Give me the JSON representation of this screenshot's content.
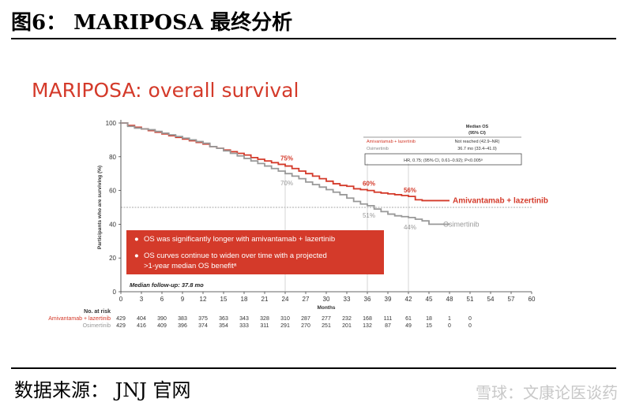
{
  "header": {
    "figure_title": "图6： MARIPOSA 最终分析"
  },
  "footer": {
    "source": "数据来源： JNJ 官网",
    "watermark": "雪球：文康论医谈药"
  },
  "chart_data": {
    "type": "line",
    "title": "MARIPOSA: overall survival",
    "xlabel": "Months",
    "ylabel": "Participants who are surviving (%)",
    "xlim": [
      0,
      60
    ],
    "ylim": [
      0,
      100
    ],
    "x_ticks": [
      0,
      3,
      6,
      9,
      12,
      15,
      18,
      21,
      24,
      27,
      30,
      33,
      36,
      39,
      42,
      45,
      48,
      51,
      54,
      57,
      60
    ],
    "y_ticks": [
      0,
      20,
      40,
      60,
      80,
      100
    ],
    "reference_line_y": 50,
    "series": [
      {
        "name": "Amivantamab + lazertinib",
        "color": "#d43a2a",
        "x": [
          0,
          1,
          2,
          3,
          4,
          5,
          6,
          7,
          8,
          9,
          10,
          11,
          12,
          13,
          14,
          15,
          16,
          17,
          18,
          19,
          20,
          21,
          22,
          23,
          24,
          25,
          26,
          27,
          28,
          29,
          30,
          31,
          32,
          33,
          34,
          35,
          36,
          37,
          38,
          39,
          40,
          41,
          42,
          43,
          44,
          45,
          46,
          47,
          48
        ],
        "y": [
          100,
          98.5,
          97.5,
          96.5,
          95.5,
          94.5,
          93.5,
          92.5,
          91.5,
          90.5,
          89.5,
          88.5,
          87.5,
          86,
          85,
          84,
          83,
          82,
          81,
          79.5,
          78.5,
          77.5,
          76.5,
          75.5,
          74.5,
          73,
          71.5,
          70,
          68.5,
          67,
          65.5,
          64,
          63,
          62.5,
          61,
          60.5,
          60,
          59,
          58.5,
          58,
          57.5,
          57,
          56.5,
          54.5,
          54,
          54,
          54,
          54,
          54
        ]
      },
      {
        "name": "Osimertinib",
        "color": "#999999",
        "x": [
          0,
          1,
          2,
          3,
          4,
          5,
          6,
          7,
          8,
          9,
          10,
          11,
          12,
          13,
          14,
          15,
          16,
          17,
          18,
          19,
          20,
          21,
          22,
          23,
          24,
          25,
          26,
          27,
          28,
          29,
          30,
          31,
          32,
          33,
          34,
          35,
          36,
          37,
          38,
          39,
          40,
          41,
          42,
          43,
          44,
          45,
          46,
          47,
          48
        ],
        "y": [
          100,
          98,
          97,
          96.5,
          96,
          95,
          94,
          93,
          92,
          91,
          90,
          89,
          88,
          86,
          85,
          83.5,
          82,
          80.5,
          79,
          77.5,
          76,
          74.5,
          73,
          71.5,
          70,
          68.5,
          67,
          65,
          63.5,
          62,
          60.5,
          59,
          57.5,
          55.5,
          53.5,
          52,
          51,
          49,
          47.5,
          46,
          45,
          44.5,
          44,
          43,
          42,
          40,
          40,
          40,
          40
        ]
      }
    ],
    "annotations": [
      {
        "text": "75%",
        "series": 0,
        "x": 24,
        "y": 75
      },
      {
        "text": "60%",
        "series": 0,
        "x": 36,
        "y": 60
      },
      {
        "text": "56%",
        "series": 0,
        "x": 42,
        "y": 56
      },
      {
        "text": "70%",
        "series": 1,
        "x": 24,
        "y": 70
      },
      {
        "text": "51%",
        "series": 1,
        "x": 36,
        "y": 51
      },
      {
        "text": "44%",
        "series": 1,
        "x": 42,
        "y": 44
      }
    ],
    "series_labels": {
      "red": "Amivantamab + lazertinib",
      "gray": "Osimertinib"
    },
    "median_table": {
      "header1": "Median OS",
      "header2": "(95% CI)",
      "rows": [
        {
          "arm": "Amivantamab + lazertinib",
          "value": "Not reached (42.9–NR)"
        },
        {
          "arm": "Osimertinib",
          "value": "36.7 mo (33.4–41.0)"
        }
      ],
      "hr": "HR, 0.75; (95% CI, 0.61–0.92); P<0.005ᵃ"
    },
    "notes": [
      "OS was significantly longer with amivantamab + lazertinib",
      "OS curves continue to widen over time with a projected",
      ">1-year median OS benefitᵃ"
    ],
    "followup": "Median follow-up: 37.8 mo",
    "at_risk": {
      "label": "No. at risk",
      "rows": [
        {
          "arm": "Amivantamab + lazertinib",
          "values": [
            429,
            404,
            390,
            383,
            375,
            363,
            343,
            328,
            310,
            287,
            277,
            232,
            168,
            111,
            61,
            18,
            1,
            0
          ]
        },
        {
          "arm": "Osimertinib",
          "values": [
            429,
            416,
            409,
            396,
            374,
            354,
            333,
            311,
            291,
            270,
            251,
            201,
            132,
            87,
            49,
            15,
            0,
            0
          ]
        }
      ]
    }
  }
}
